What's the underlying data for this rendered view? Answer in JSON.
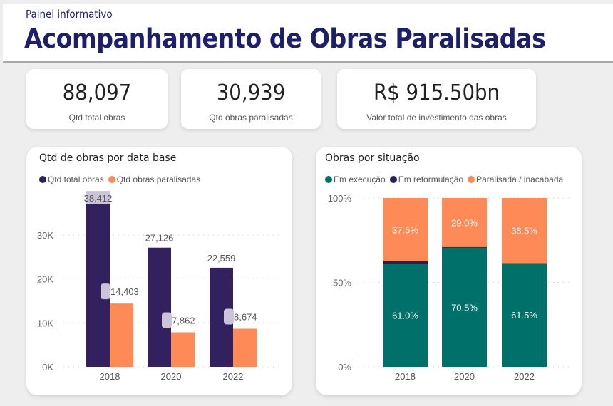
{
  "header": {
    "subtitle": "Painel informativo",
    "title": "Acompanhamento de Obras Paralisadas"
  },
  "kpis": [
    {
      "value": "88,097",
      "label": "Qtd total obras"
    },
    {
      "value": "30,939",
      "label": "Qtd obras paralisadas"
    },
    {
      "value": "R$ 915.50bn",
      "label": "Valor total de investimento das obras"
    }
  ],
  "colors": {
    "header_text": "#1c1f6b",
    "total": "#33205e",
    "paralisadas": "#fe8a58",
    "execucao": "#00706b",
    "reformulacao": "#2b1a5c"
  },
  "chart_data": [
    {
      "type": "bar",
      "title": "Qtd de obras por data base",
      "categories": [
        "2018",
        "2020",
        "2022"
      ],
      "series": [
        {
          "name": "Qtd total obras",
          "values": [
            38412,
            27126,
            22559
          ],
          "labels": [
            "38,412",
            "27,126",
            "22,559"
          ]
        },
        {
          "name": "Qtd obras paralisadas",
          "values": [
            14403,
            7862,
            8674
          ],
          "labels": [
            "14,403",
            "7,862",
            "8,674"
          ]
        }
      ],
      "yticks": [
        "0K",
        "10K",
        "20K",
        "30K"
      ],
      "ytick_values": [
        0,
        10000,
        20000,
        30000
      ],
      "ylim": [
        0,
        30000
      ],
      "grid": true,
      "legend": "top-left",
      "xlabel": "",
      "ylabel": ""
    },
    {
      "type": "bar",
      "stacked": true,
      "percent": true,
      "title": "Obras por situação",
      "categories": [
        "2018",
        "2020",
        "2022"
      ],
      "series": [
        {
          "name": "Em execução",
          "values": [
            61.0,
            70.5,
            61.5
          ],
          "labels": [
            "61.0%",
            "70.5%",
            "61.5%"
          ]
        },
        {
          "name": "Em reformulação",
          "values": [
            1.5,
            0.5,
            0.0
          ],
          "labels": [
            "",
            "",
            ""
          ]
        },
        {
          "name": "Paralisada / inacabada",
          "values": [
            37.5,
            29.0,
            38.5
          ],
          "labels": [
            "37.5%",
            "29.0%",
            "38.5%"
          ]
        }
      ],
      "yticks": [
        "0%",
        "50%",
        "100%"
      ],
      "ytick_values": [
        0,
        50,
        100
      ],
      "ylim": [
        0,
        100
      ],
      "grid": true,
      "legend": "top-left",
      "xlabel": "",
      "ylabel": ""
    }
  ]
}
